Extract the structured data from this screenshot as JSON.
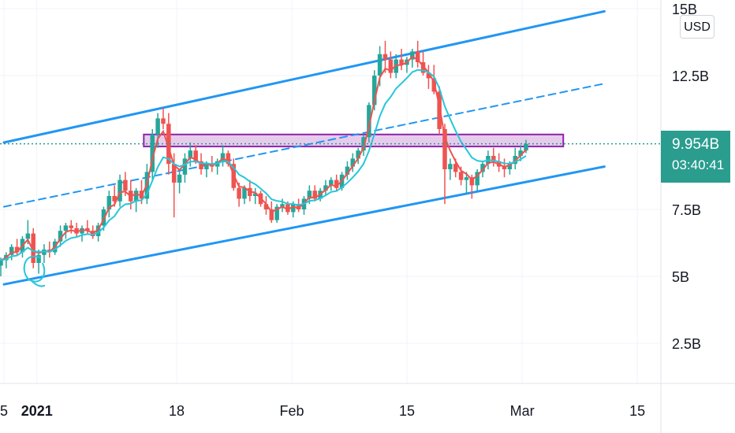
{
  "chart_data": {
    "type": "candlestick",
    "currency": "USD",
    "y_axis": {
      "ticks": [
        {
          "value": 15,
          "label": "15B"
        },
        {
          "value": 12.5,
          "label": "12.5B"
        },
        {
          "value": 7.5,
          "label": "7.5B"
        },
        {
          "value": 5,
          "label": "5B"
        },
        {
          "value": 2.5,
          "label": "2.5B"
        }
      ],
      "ylim": [
        0,
        15.6
      ]
    },
    "x_axis": {
      "ticks": [
        {
          "label": "5",
          "bold": false
        },
        {
          "label": "2021",
          "bold": true
        },
        {
          "label": "18",
          "bold": false
        },
        {
          "label": "Feb",
          "bold": false
        },
        {
          "label": "15",
          "bold": false
        },
        {
          "label": "Mar",
          "bold": false
        },
        {
          "label": "15",
          "bold": false
        }
      ]
    },
    "last_price": {
      "value": 9.954,
      "label": "9.954B",
      "countdown": "03:40:41"
    },
    "colors": {
      "up": "#26a69a",
      "down": "#ef5350",
      "ma_fast": "#ef5350",
      "ma_slow": "#26c6da",
      "channel": "#2196f3",
      "zone_fill": "#e1bee7",
      "zone_border": "#8e24aa",
      "price_line": "#2a9d8f"
    },
    "channel": {
      "upper": [
        {
          "x": "2020-12-28",
          "y": 10.0
        },
        {
          "x": "2021-03-11",
          "y": 14.9
        }
      ],
      "middle": [
        {
          "x": "2020-12-28",
          "y": 7.6
        },
        {
          "x": "2021-03-11",
          "y": 12.2
        }
      ],
      "lower": [
        {
          "x": "2020-12-28",
          "y": 4.7
        },
        {
          "x": "2021-03-11",
          "y": 9.1
        }
      ]
    },
    "resistance_zone": {
      "from": "2021-01-14",
      "to": "2021-03-06",
      "y_low": 9.85,
      "y_high": 10.3
    },
    "candles": [
      {
        "o": 5.4,
        "h": 5.7,
        "l": 5.0,
        "c": 5.6
      },
      {
        "o": 5.6,
        "h": 5.9,
        "l": 5.3,
        "c": 5.8
      },
      {
        "o": 5.8,
        "h": 6.2,
        "l": 5.6,
        "c": 6.1
      },
      {
        "o": 6.1,
        "h": 6.4,
        "l": 5.8,
        "c": 5.9
      },
      {
        "o": 5.9,
        "h": 6.5,
        "l": 5.7,
        "c": 6.4
      },
      {
        "o": 6.4,
        "h": 7.1,
        "l": 6.2,
        "c": 6.6
      },
      {
        "o": 6.6,
        "h": 6.8,
        "l": 5.3,
        "c": 5.5
      },
      {
        "o": 5.5,
        "h": 6.0,
        "l": 5.1,
        "c": 5.8
      },
      {
        "o": 5.8,
        "h": 6.2,
        "l": 5.5,
        "c": 6.0
      },
      {
        "o": 6.0,
        "h": 6.3,
        "l": 5.7,
        "c": 5.9
      },
      {
        "o": 5.9,
        "h": 6.4,
        "l": 5.8,
        "c": 6.3
      },
      {
        "o": 6.3,
        "h": 6.9,
        "l": 6.1,
        "c": 6.7
      },
      {
        "o": 6.7,
        "h": 7.0,
        "l": 6.4,
        "c": 6.9
      },
      {
        "o": 6.9,
        "h": 7.1,
        "l": 6.6,
        "c": 6.8
      },
      {
        "o": 6.8,
        "h": 7.0,
        "l": 6.5,
        "c": 6.6
      },
      {
        "o": 6.6,
        "h": 6.9,
        "l": 6.3,
        "c": 6.8
      },
      {
        "o": 6.8,
        "h": 7.1,
        "l": 6.6,
        "c": 6.7
      },
      {
        "o": 6.7,
        "h": 6.9,
        "l": 6.4,
        "c": 6.5
      },
      {
        "o": 6.5,
        "h": 7.0,
        "l": 6.3,
        "c": 6.9
      },
      {
        "o": 6.9,
        "h": 7.6,
        "l": 6.7,
        "c": 7.5
      },
      {
        "o": 7.5,
        "h": 8.2,
        "l": 7.2,
        "c": 8.0
      },
      {
        "o": 8.0,
        "h": 8.4,
        "l": 7.6,
        "c": 7.8
      },
      {
        "o": 7.8,
        "h": 8.8,
        "l": 7.6,
        "c": 8.6
      },
      {
        "o": 8.6,
        "h": 8.9,
        "l": 8.0,
        "c": 8.2
      },
      {
        "o": 8.2,
        "h": 8.6,
        "l": 7.5,
        "c": 7.8
      },
      {
        "o": 7.8,
        "h": 8.3,
        "l": 7.4,
        "c": 8.2
      },
      {
        "o": 8.2,
        "h": 8.6,
        "l": 7.7,
        "c": 7.9
      },
      {
        "o": 7.9,
        "h": 9.2,
        "l": 7.7,
        "c": 8.9
      },
      {
        "o": 8.9,
        "h": 10.5,
        "l": 8.6,
        "c": 10.3
      },
      {
        "o": 10.3,
        "h": 11.1,
        "l": 9.8,
        "c": 10.9
      },
      {
        "o": 10.9,
        "h": 11.3,
        "l": 10.5,
        "c": 10.7
      },
      {
        "o": 10.7,
        "h": 11.1,
        "l": 8.8,
        "c": 9.2
      },
      {
        "o": 9.2,
        "h": 9.6,
        "l": 7.2,
        "c": 8.5
      },
      {
        "o": 8.5,
        "h": 9.0,
        "l": 8.1,
        "c": 8.8
      },
      {
        "o": 8.8,
        "h": 9.6,
        "l": 8.5,
        "c": 9.4
      },
      {
        "o": 9.4,
        "h": 10.0,
        "l": 9.1,
        "c": 9.7
      },
      {
        "o": 9.7,
        "h": 9.9,
        "l": 9.2,
        "c": 9.3
      },
      {
        "o": 9.3,
        "h": 9.6,
        "l": 8.8,
        "c": 9.0
      },
      {
        "o": 9.0,
        "h": 9.3,
        "l": 8.7,
        "c": 9.2
      },
      {
        "o": 9.2,
        "h": 9.5,
        "l": 8.9,
        "c": 9.1
      },
      {
        "o": 9.1,
        "h": 9.4,
        "l": 8.8,
        "c": 9.3
      },
      {
        "o": 9.3,
        "h": 9.9,
        "l": 9.1,
        "c": 9.6
      },
      {
        "o": 9.6,
        "h": 9.7,
        "l": 9.1,
        "c": 9.2
      },
      {
        "o": 9.2,
        "h": 9.4,
        "l": 8.2,
        "c": 8.3
      },
      {
        "o": 8.3,
        "h": 8.5,
        "l": 7.6,
        "c": 7.9
      },
      {
        "o": 7.9,
        "h": 8.4,
        "l": 7.7,
        "c": 8.3
      },
      {
        "o": 8.3,
        "h": 8.6,
        "l": 7.8,
        "c": 8.0
      },
      {
        "o": 8.0,
        "h": 8.3,
        "l": 7.7,
        "c": 8.1
      },
      {
        "o": 8.1,
        "h": 8.2,
        "l": 7.6,
        "c": 7.7
      },
      {
        "o": 7.7,
        "h": 8.0,
        "l": 7.3,
        "c": 7.5
      },
      {
        "o": 7.5,
        "h": 7.8,
        "l": 7.0,
        "c": 7.1
      },
      {
        "o": 7.1,
        "h": 7.7,
        "l": 7.0,
        "c": 7.6
      },
      {
        "o": 7.6,
        "h": 7.9,
        "l": 7.4,
        "c": 7.7
      },
      {
        "o": 7.7,
        "h": 7.8,
        "l": 7.3,
        "c": 7.4
      },
      {
        "o": 7.4,
        "h": 7.8,
        "l": 7.2,
        "c": 7.7
      },
      {
        "o": 7.7,
        "h": 7.9,
        "l": 7.4,
        "c": 7.5
      },
      {
        "o": 7.5,
        "h": 8.0,
        "l": 7.3,
        "c": 7.9
      },
      {
        "o": 7.9,
        "h": 8.4,
        "l": 7.7,
        "c": 8.2
      },
      {
        "o": 8.2,
        "h": 8.4,
        "l": 7.8,
        "c": 7.9
      },
      {
        "o": 7.9,
        "h": 8.3,
        "l": 7.8,
        "c": 8.2
      },
      {
        "o": 8.2,
        "h": 8.6,
        "l": 8.0,
        "c": 8.4
      },
      {
        "o": 8.4,
        "h": 8.7,
        "l": 8.2,
        "c": 8.6
      },
      {
        "o": 8.6,
        "h": 8.8,
        "l": 8.2,
        "c": 8.3
      },
      {
        "o": 8.3,
        "h": 8.9,
        "l": 8.2,
        "c": 8.8
      },
      {
        "o": 8.8,
        "h": 9.3,
        "l": 8.6,
        "c": 9.1
      },
      {
        "o": 9.1,
        "h": 9.6,
        "l": 8.9,
        "c": 9.4
      },
      {
        "o": 9.4,
        "h": 9.8,
        "l": 9.2,
        "c": 9.7
      },
      {
        "o": 9.7,
        "h": 10.3,
        "l": 9.5,
        "c": 10.2
      },
      {
        "o": 10.2,
        "h": 11.5,
        "l": 10.0,
        "c": 11.4
      },
      {
        "o": 11.4,
        "h": 12.7,
        "l": 11.2,
        "c": 12.5
      },
      {
        "o": 12.5,
        "h": 13.6,
        "l": 12.1,
        "c": 13.3
      },
      {
        "o": 13.3,
        "h": 13.8,
        "l": 12.6,
        "c": 13.1
      },
      {
        "o": 13.1,
        "h": 13.4,
        "l": 12.4,
        "c": 12.6
      },
      {
        "o": 12.6,
        "h": 13.3,
        "l": 12.4,
        "c": 13.1
      },
      {
        "o": 13.1,
        "h": 13.5,
        "l": 12.7,
        "c": 12.9
      },
      {
        "o": 12.9,
        "h": 13.2,
        "l": 12.6,
        "c": 13.1
      },
      {
        "o": 13.1,
        "h": 13.5,
        "l": 12.8,
        "c": 13.4
      },
      {
        "o": 13.4,
        "h": 13.8,
        "l": 12.8,
        "c": 13.0
      },
      {
        "o": 13.0,
        "h": 13.4,
        "l": 12.5,
        "c": 12.6
      },
      {
        "o": 12.6,
        "h": 12.9,
        "l": 12.0,
        "c": 12.4
      },
      {
        "o": 12.4,
        "h": 12.9,
        "l": 11.8,
        "c": 11.9
      },
      {
        "o": 11.9,
        "h": 12.1,
        "l": 10.3,
        "c": 10.5
      },
      {
        "o": 10.5,
        "h": 10.7,
        "l": 7.7,
        "c": 9.0
      },
      {
        "o": 9.0,
        "h": 9.4,
        "l": 8.6,
        "c": 9.2
      },
      {
        "o": 9.2,
        "h": 9.4,
        "l": 8.7,
        "c": 8.9
      },
      {
        "o": 8.9,
        "h": 9.1,
        "l": 8.4,
        "c": 8.6
      },
      {
        "o": 8.6,
        "h": 8.9,
        "l": 8.1,
        "c": 8.7
      },
      {
        "o": 8.7,
        "h": 8.8,
        "l": 7.9,
        "c": 8.4
      },
      {
        "o": 8.4,
        "h": 9.0,
        "l": 8.2,
        "c": 8.9
      },
      {
        "o": 8.9,
        "h": 9.3,
        "l": 8.7,
        "c": 9.2
      },
      {
        "o": 9.2,
        "h": 9.7,
        "l": 9.0,
        "c": 9.5
      },
      {
        "o": 9.5,
        "h": 9.8,
        "l": 9.1,
        "c": 9.3
      },
      {
        "o": 9.3,
        "h": 9.6,
        "l": 8.9,
        "c": 9.1
      },
      {
        "o": 9.1,
        "h": 9.4,
        "l": 8.7,
        "c": 9.0
      },
      {
        "o": 9.0,
        "h": 9.3,
        "l": 8.8,
        "c": 9.2
      },
      {
        "o": 9.2,
        "h": 9.8,
        "l": 9.0,
        "c": 9.5
      },
      {
        "o": 9.5,
        "h": 9.9,
        "l": 9.3,
        "c": 9.7
      },
      {
        "o": 9.7,
        "h": 10.1,
        "l": 9.6,
        "c": 9.95
      }
    ]
  }
}
